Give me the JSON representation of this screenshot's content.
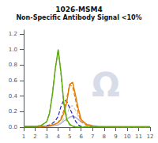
{
  "chart_data": {
    "type": "line",
    "title": "1026-MSM4",
    "subtitle": "Non-Specific Antibody Signal <10%",
    "annotations": [
      {
        "text": "Ω",
        "color": "#d8dce8"
      }
    ],
    "x": [
      1,
      1.5,
      2,
      2.5,
      3,
      3.25,
      3.5,
      3.75,
      4,
      4.25,
      4.5,
      4.75,
      5,
      5.25,
      5.5,
      5.75,
      6,
      6.5,
      7,
      7.5,
      8,
      9,
      10,
      11,
      12
    ],
    "xlim": [
      1,
      12
    ],
    "xticks": [
      1,
      2,
      3,
      4,
      5,
      6,
      7,
      8,
      9,
      10,
      11,
      12
    ],
    "ylim": [
      0,
      1.25
    ],
    "yticks": [
      {
        "value": 0,
        "label": "0.0"
      },
      0.2,
      0.4,
      0.6,
      0.8,
      {
        "value": 1.0,
        "label": "1.0"
      },
      1.2
    ],
    "grid": false,
    "series": [
      {
        "color": "#b0b0d8",
        "line_style": "solid",
        "values": [
          0.005,
          0.005,
          0.005,
          0.005,
          0.01,
          0.01,
          0.015,
          0.02,
          0.03,
          0.05,
          0.08,
          0.1,
          0.13,
          0.14,
          0.13,
          0.1,
          0.07,
          0.04,
          0.02,
          0.01,
          0.008,
          0.005,
          0.002,
          0.001,
          0.001
        ]
      },
      {
        "color": "#cccccc",
        "line_style": "dashed",
        "values": [
          0.005,
          0.005,
          0.005,
          0.005,
          0.01,
          0.01,
          0.015,
          0.02,
          0.03,
          0.06,
          0.11,
          0.16,
          0.26,
          0.28,
          0.22,
          0.14,
          0.08,
          0.03,
          0.012,
          0.007,
          0.004,
          0.002,
          0.001,
          0.001,
          0.001
        ]
      },
      {
        "color": "#2222bb",
        "line_style": "dashed",
        "values": [
          0.01,
          0.01,
          0.01,
          0.01,
          0.02,
          0.03,
          0.05,
          0.08,
          0.14,
          0.27,
          0.35,
          0.33,
          0.25,
          0.16,
          0.08,
          0.03,
          0.01,
          0.005,
          0.002,
          0.001,
          0.001,
          0.001,
          0.001,
          0.001,
          0.001
        ]
      },
      {
        "color": "#e07b00",
        "line_style": "dashed",
        "values": [
          0.01,
          0.01,
          0.01,
          0.01,
          0.01,
          0.02,
          0.03,
          0.04,
          0.06,
          0.12,
          0.22,
          0.38,
          0.55,
          0.52,
          0.36,
          0.18,
          0.07,
          0.02,
          0.008,
          0.005,
          0.003,
          0.002,
          0.001,
          0.001,
          0.001
        ]
      },
      {
        "color": "#e07b00",
        "line_style": "solid",
        "values": [
          0.01,
          0.01,
          0.01,
          0.01,
          0.01,
          0.02,
          0.03,
          0.04,
          0.06,
          0.1,
          0.18,
          0.32,
          0.55,
          0.58,
          0.42,
          0.24,
          0.1,
          0.03,
          0.015,
          0.01,
          0.008,
          0.008,
          0.008,
          0.008,
          0.008
        ]
      },
      {
        "color": "#5aaa10",
        "line_style": "dashed",
        "values": [
          0.01,
          0.01,
          0.01,
          0.02,
          0.07,
          0.18,
          0.43,
          0.76,
          0.99,
          0.68,
          0.28,
          0.09,
          0.03,
          0.012,
          0.004,
          0.002,
          0.001,
          0.001,
          0.001,
          0.001,
          0.001,
          0.001,
          0.001,
          0.001,
          0.001
        ]
      },
      {
        "color": "#5aaa10",
        "line_style": "solid",
        "values": [
          0.01,
          0.01,
          0.01,
          0.02,
          0.07,
          0.18,
          0.42,
          0.75,
          1.0,
          0.7,
          0.3,
          0.1,
          0.04,
          0.015,
          0.005,
          0.002,
          0.001,
          0.001,
          0.001,
          0.001,
          0.001,
          0.001,
          0.001,
          0.001,
          0.001
        ]
      }
    ]
  }
}
